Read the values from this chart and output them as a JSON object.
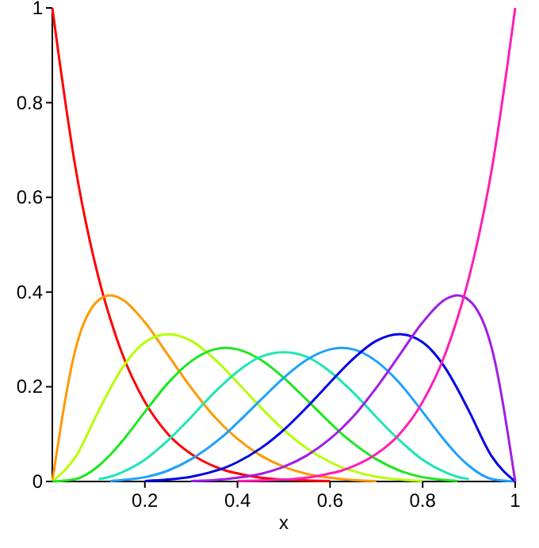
{
  "chart_data": {
    "type": "line",
    "xlabel": "x",
    "x": [
      0,
      0.05,
      0.1,
      0.125,
      0.15,
      0.2,
      0.25,
      0.3,
      0.35,
      0.375,
      0.4,
      0.45,
      0.5,
      0.55,
      0.6,
      0.625,
      0.65,
      0.7,
      0.75,
      0.8,
      0.85,
      0.875,
      0.9,
      0.95,
      1
    ],
    "xlim": [
      0,
      1
    ],
    "xticks": [
      0.2,
      0.4,
      0.6,
      0.8,
      1
    ],
    "ylim": [
      0,
      1
    ],
    "yticks": [
      0,
      0.2,
      0.4,
      0.6,
      0.8,
      1
    ],
    "grid": false,
    "marker": "none",
    "line_style": "solid",
    "series": [
      {
        "color": "#ff0000",
        "values": [
          1,
          0.663,
          0.43,
          0.344,
          0.272,
          0.168,
          0.1,
          0.058,
          0.032,
          0.023,
          0.017,
          0.008,
          0.004,
          0.002,
          0.001,
          null,
          null,
          null,
          null,
          null,
          null,
          null,
          null,
          null,
          null
        ]
      },
      {
        "color": "#ff9900",
        "values": [
          0,
          0.279,
          0.383,
          0.393,
          0.385,
          0.336,
          0.267,
          0.198,
          0.137,
          0.112,
          0.09,
          0.055,
          0.031,
          0.016,
          0.008,
          0.005,
          0.003,
          0.001,
          null,
          null,
          null,
          null,
          null,
          null,
          null
        ]
      },
      {
        "color": "#b4ff00",
        "values": [
          0,
          0.052,
          0.149,
          0.196,
          0.238,
          0.294,
          0.311,
          0.297,
          0.259,
          0.235,
          0.209,
          0.157,
          0.109,
          0.07,
          0.041,
          0.03,
          0.022,
          0.01,
          0.004,
          0.001,
          null,
          null,
          null,
          null,
          null
        ]
      },
      {
        "color": "#1ee61e",
        "values": [
          0,
          0.005,
          0.033,
          0.056,
          0.084,
          0.147,
          0.208,
          0.254,
          0.279,
          0.282,
          0.279,
          0.257,
          0.219,
          0.172,
          0.124,
          0.101,
          0.081,
          0.047,
          0.023,
          0.009,
          0.003,
          0.001,
          null,
          null,
          null
        ]
      },
      {
        "color": "#1ee6b4",
        "values": [
          null,
          null,
          0.005,
          0.01,
          0.019,
          0.046,
          0.087,
          0.136,
          0.188,
          0.211,
          0.232,
          0.263,
          0.273,
          0.263,
          0.232,
          0.211,
          0.188,
          0.136,
          0.087,
          0.046,
          0.019,
          0.01,
          0.005,
          null,
          null
        ]
      },
      {
        "color": "#1ea0ff",
        "values": [
          null,
          null,
          null,
          0.001,
          0.003,
          0.009,
          0.023,
          0.047,
          0.081,
          0.101,
          0.124,
          0.172,
          0.219,
          0.257,
          0.279,
          0.282,
          0.279,
          0.254,
          0.208,
          0.147,
          0.084,
          0.056,
          0.033,
          0.005,
          0
        ]
      },
      {
        "color": "#0000e6",
        "values": [
          null,
          null,
          null,
          null,
          null,
          0.001,
          0.004,
          0.01,
          0.022,
          0.03,
          0.041,
          0.07,
          0.109,
          0.157,
          0.209,
          0.235,
          0.259,
          0.297,
          0.311,
          0.294,
          0.238,
          0.196,
          0.149,
          0.052,
          0
        ]
      },
      {
        "color": "#a01ee6",
        "values": [
          null,
          null,
          null,
          null,
          null,
          null,
          null,
          0.001,
          0.003,
          0.005,
          0.008,
          0.016,
          0.031,
          0.055,
          0.09,
          0.112,
          0.137,
          0.198,
          0.267,
          0.336,
          0.385,
          0.393,
          0.383,
          0.279,
          0
        ]
      },
      {
        "color": "#ff1eb4",
        "values": [
          null,
          null,
          null,
          null,
          null,
          null,
          null,
          null,
          null,
          null,
          0.001,
          0.002,
          0.004,
          0.008,
          0.017,
          0.023,
          0.032,
          0.058,
          0.1,
          0.168,
          0.272,
          0.344,
          0.43,
          0.663,
          1
        ]
      }
    ]
  }
}
